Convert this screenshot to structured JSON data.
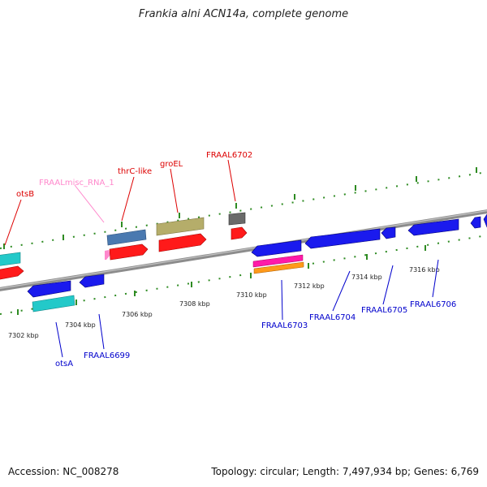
{
  "title": "Frankia alni ACN14a, complete genome",
  "footer": {
    "accession": "Accession: NC_008278",
    "stats": "Topology: circular; Length: 7,497,934 bp; Genes: 6,769"
  },
  "colors": {
    "background": "#ffffff",
    "axis": "#8a8a8a",
    "ticks": "#2e8b22",
    "forward_label": "#dd0000",
    "rna_label": "#ff88cc",
    "reverse_label": "#0000cc"
  },
  "scale_labels": [
    "7302 kbp",
    "7304 kbp",
    "7306 kbp",
    "7308 kbp",
    "7310 kbp",
    "7312 kbp",
    "7314 kbp",
    "7316 kbp"
  ],
  "forward_labels": [
    "otsB",
    "FRAALmisc_RNA_1",
    "thrC-like",
    "groEL",
    "FRAAL6702"
  ],
  "reverse_labels": [
    "otsA",
    "FRAAL6699",
    "FRAAL6703",
    "FRAAL6704",
    "FRAAL6705",
    "FRAAL6706"
  ]
}
